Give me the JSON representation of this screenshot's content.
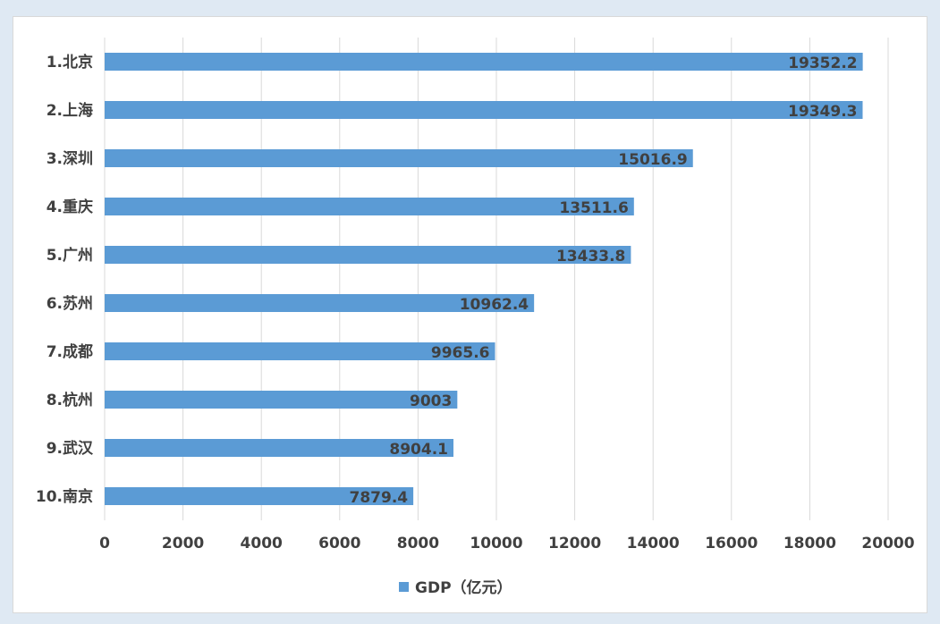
{
  "chart_data": {
    "type": "bar",
    "orientation": "horizontal",
    "categories": [
      "1.北京",
      "2.上海",
      "3.深圳",
      "4.重庆",
      "5.广州",
      "6.苏州",
      "7.成都",
      "8.杭州",
      "9.武汉",
      "10.南京"
    ],
    "series": [
      {
        "name": "GDP（亿元）",
        "values": [
          19352.2,
          19349.3,
          15016.9,
          13511.6,
          13433.8,
          10962.4,
          9965.6,
          9003,
          8904.1,
          7879.4
        ]
      }
    ],
    "data_labels": [
      "19352.2",
      "19349.3",
      "15016.9",
      "13511.6",
      "13433.8",
      "10962.4",
      "9965.6",
      "9003",
      "8904.1",
      "7879.4"
    ],
    "xlim": [
      0,
      20000
    ],
    "ticks": [
      "0",
      "2000",
      "4000",
      "6000",
      "8000",
      "10000",
      "12000",
      "14000",
      "16000",
      "18000",
      "20000"
    ],
    "grid": "vertical",
    "legend_position": "bottom",
    "bar_color": "#5b9bd5",
    "grid_color": "#d9d9d9"
  }
}
